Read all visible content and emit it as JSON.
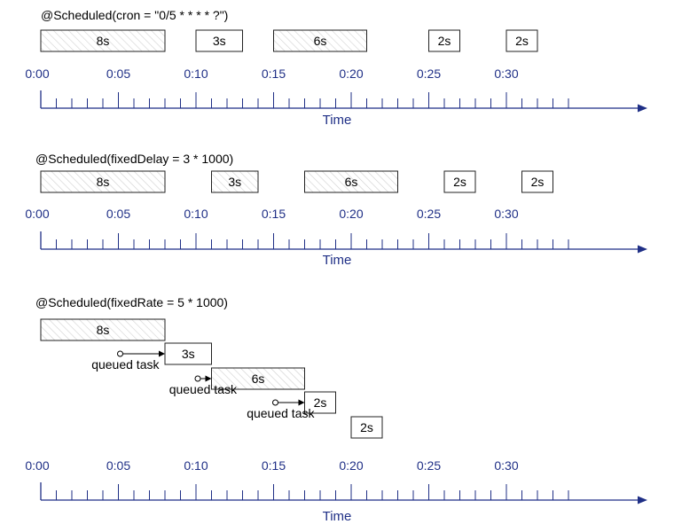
{
  "colors": {
    "axis": "#1f2f86",
    "label": "#1f2f86",
    "box_stroke": "#222222",
    "hatch": "#d0d0d0",
    "text": "#000000"
  },
  "axis": {
    "tick_labels": [
      "0:00",
      "0:05",
      "0:10",
      "0:15",
      "0:20",
      "0:25",
      "0:30"
    ],
    "label": "Time"
  },
  "panels": [
    {
      "title": "@Scheduled(cron = \"0/5 * * * * ?\")",
      "tasks": [
        {
          "label": "8s",
          "start": 0,
          "duration": 8,
          "hatched": true
        },
        {
          "label": "3s",
          "start": 10,
          "duration": 3,
          "hatched": false
        },
        {
          "label": "6s",
          "start": 15,
          "duration": 6,
          "hatched": true
        },
        {
          "label": "2s",
          "start": 25,
          "duration": 2,
          "hatched": false
        },
        {
          "label": "2s",
          "start": 30,
          "duration": 2,
          "hatched": false
        }
      ],
      "queued": []
    },
    {
      "title": "@Scheduled(fixedDelay = 3 * 1000)",
      "tasks": [
        {
          "label": "8s",
          "start": 0,
          "duration": 8,
          "hatched": true
        },
        {
          "label": "3s",
          "start": 11,
          "duration": 3,
          "hatched": true
        },
        {
          "label": "6s",
          "start": 17,
          "duration": 6,
          "hatched": true
        },
        {
          "label": "2s",
          "start": 26,
          "duration": 2,
          "hatched": false
        },
        {
          "label": "2s",
          "start": 31,
          "duration": 2,
          "hatched": false
        }
      ],
      "queued": []
    },
    {
      "title": "@Scheduled(fixedRate = 5 * 1000)",
      "tasks": [
        {
          "label": "8s",
          "start": 0,
          "duration": 8,
          "hatched": true
        },
        {
          "label": "3s",
          "start": 8,
          "duration": 3,
          "hatched": false
        },
        {
          "label": "6s",
          "start": 11,
          "duration": 6,
          "hatched": true
        },
        {
          "label": "2s",
          "start": 17,
          "duration": 2,
          "hatched": false
        },
        {
          "label": "2s",
          "start": 20,
          "duration": 2,
          "hatched": false
        }
      ],
      "queued": [
        {
          "label": "queued task",
          "from": 5,
          "to": 8
        },
        {
          "label": "queued task",
          "from": 10,
          "to": 11
        },
        {
          "label": "queued task",
          "from": 15,
          "to": 17
        }
      ]
    }
  ]
}
